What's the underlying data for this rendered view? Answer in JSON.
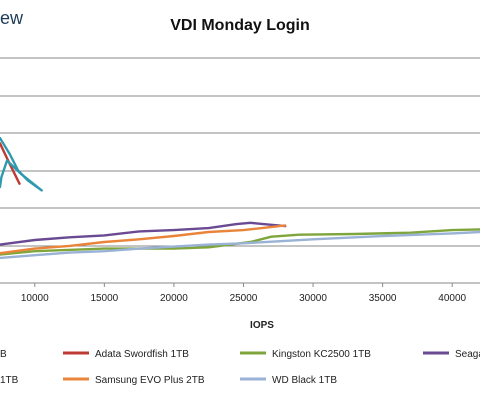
{
  "brand": {
    "text": "ew"
  },
  "chart_data": {
    "type": "line",
    "title": "VDI Monday Login",
    "xlabel": "IOPS",
    "ylabel": "",
    "xlim": [
      7500,
      42000
    ],
    "ylim": [
      0,
      340
    ],
    "x_ticks": [
      10000,
      15000,
      20000,
      25000,
      30000,
      35000,
      40000
    ],
    "x_tick_labels": [
      "10000",
      "15000",
      "20000",
      "25000",
      "30000",
      "35000",
      "40000"
    ],
    "grid": true,
    "legend_position": "bottom",
    "legend_labels_visible": [
      "B",
      "Adata Swordfish 1TB",
      "Kingston KC2500 1TB",
      "Seaga",
      "1TB",
      "Samsung EVO Plus 2TB",
      "WD Black 1TB"
    ],
    "series": [
      {
        "name": "B",
        "color": "#2f6da8",
        "points": []
      },
      {
        "name": "Adata Swordfish 1TB",
        "color": "#be3a34",
        "points": [
          [
            7500,
            211
          ],
          [
            8200,
            180
          ],
          [
            8900,
            150
          ]
        ]
      },
      {
        "name": "Kingston KC2500 1TB",
        "color": "#7fa63c",
        "points": [
          [
            7500,
            43
          ],
          [
            10000,
            48
          ],
          [
            15000,
            52
          ],
          [
            20000,
            52
          ],
          [
            22500,
            54
          ],
          [
            25500,
            62
          ],
          [
            27000,
            70
          ],
          [
            29000,
            73
          ],
          [
            33000,
            74
          ],
          [
            37000,
            76
          ],
          [
            40000,
            80
          ],
          [
            42000,
            81
          ]
        ]
      },
      {
        "name": "Seaga",
        "color": "#6a4a93",
        "points": [
          [
            7500,
            58
          ],
          [
            10000,
            65
          ],
          [
            12500,
            69
          ],
          [
            15000,
            72
          ],
          [
            17500,
            78
          ],
          [
            20000,
            80
          ],
          [
            22500,
            83
          ],
          [
            24500,
            89
          ],
          [
            25500,
            91
          ],
          [
            27000,
            88
          ],
          [
            28000,
            86
          ]
        ]
      },
      {
        "name": "1TB",
        "color": "#2f9aae",
        "points": [
          [
            7500,
            219
          ],
          [
            8200,
            195
          ],
          [
            8800,
            170
          ],
          [
            9500,
            155
          ],
          [
            10500,
            140
          ],
          [
            9000,
            165
          ],
          [
            8000,
            185
          ],
          [
            7600,
            160
          ],
          [
            7500,
            145
          ]
        ]
      },
      {
        "name": "Samsung EVO Plus 2TB",
        "color": "#e9843a",
        "points": [
          [
            7500,
            45
          ],
          [
            10000,
            52
          ],
          [
            12500,
            56
          ],
          [
            15000,
            62
          ],
          [
            17500,
            66
          ],
          [
            20000,
            71
          ],
          [
            22500,
            77
          ],
          [
            25000,
            80
          ],
          [
            28000,
            87
          ]
        ]
      },
      {
        "name": "WD Black 1TB",
        "color": "#99b2d6",
        "points": [
          [
            7500,
            38
          ],
          [
            10000,
            42
          ],
          [
            12500,
            46
          ],
          [
            15000,
            48
          ],
          [
            17500,
            52
          ],
          [
            20000,
            55
          ],
          [
            22500,
            58
          ],
          [
            25000,
            60
          ],
          [
            27500,
            63
          ],
          [
            30000,
            66
          ],
          [
            35000,
            71
          ],
          [
            40000,
            75
          ],
          [
            42000,
            77
          ]
        ]
      }
    ]
  }
}
